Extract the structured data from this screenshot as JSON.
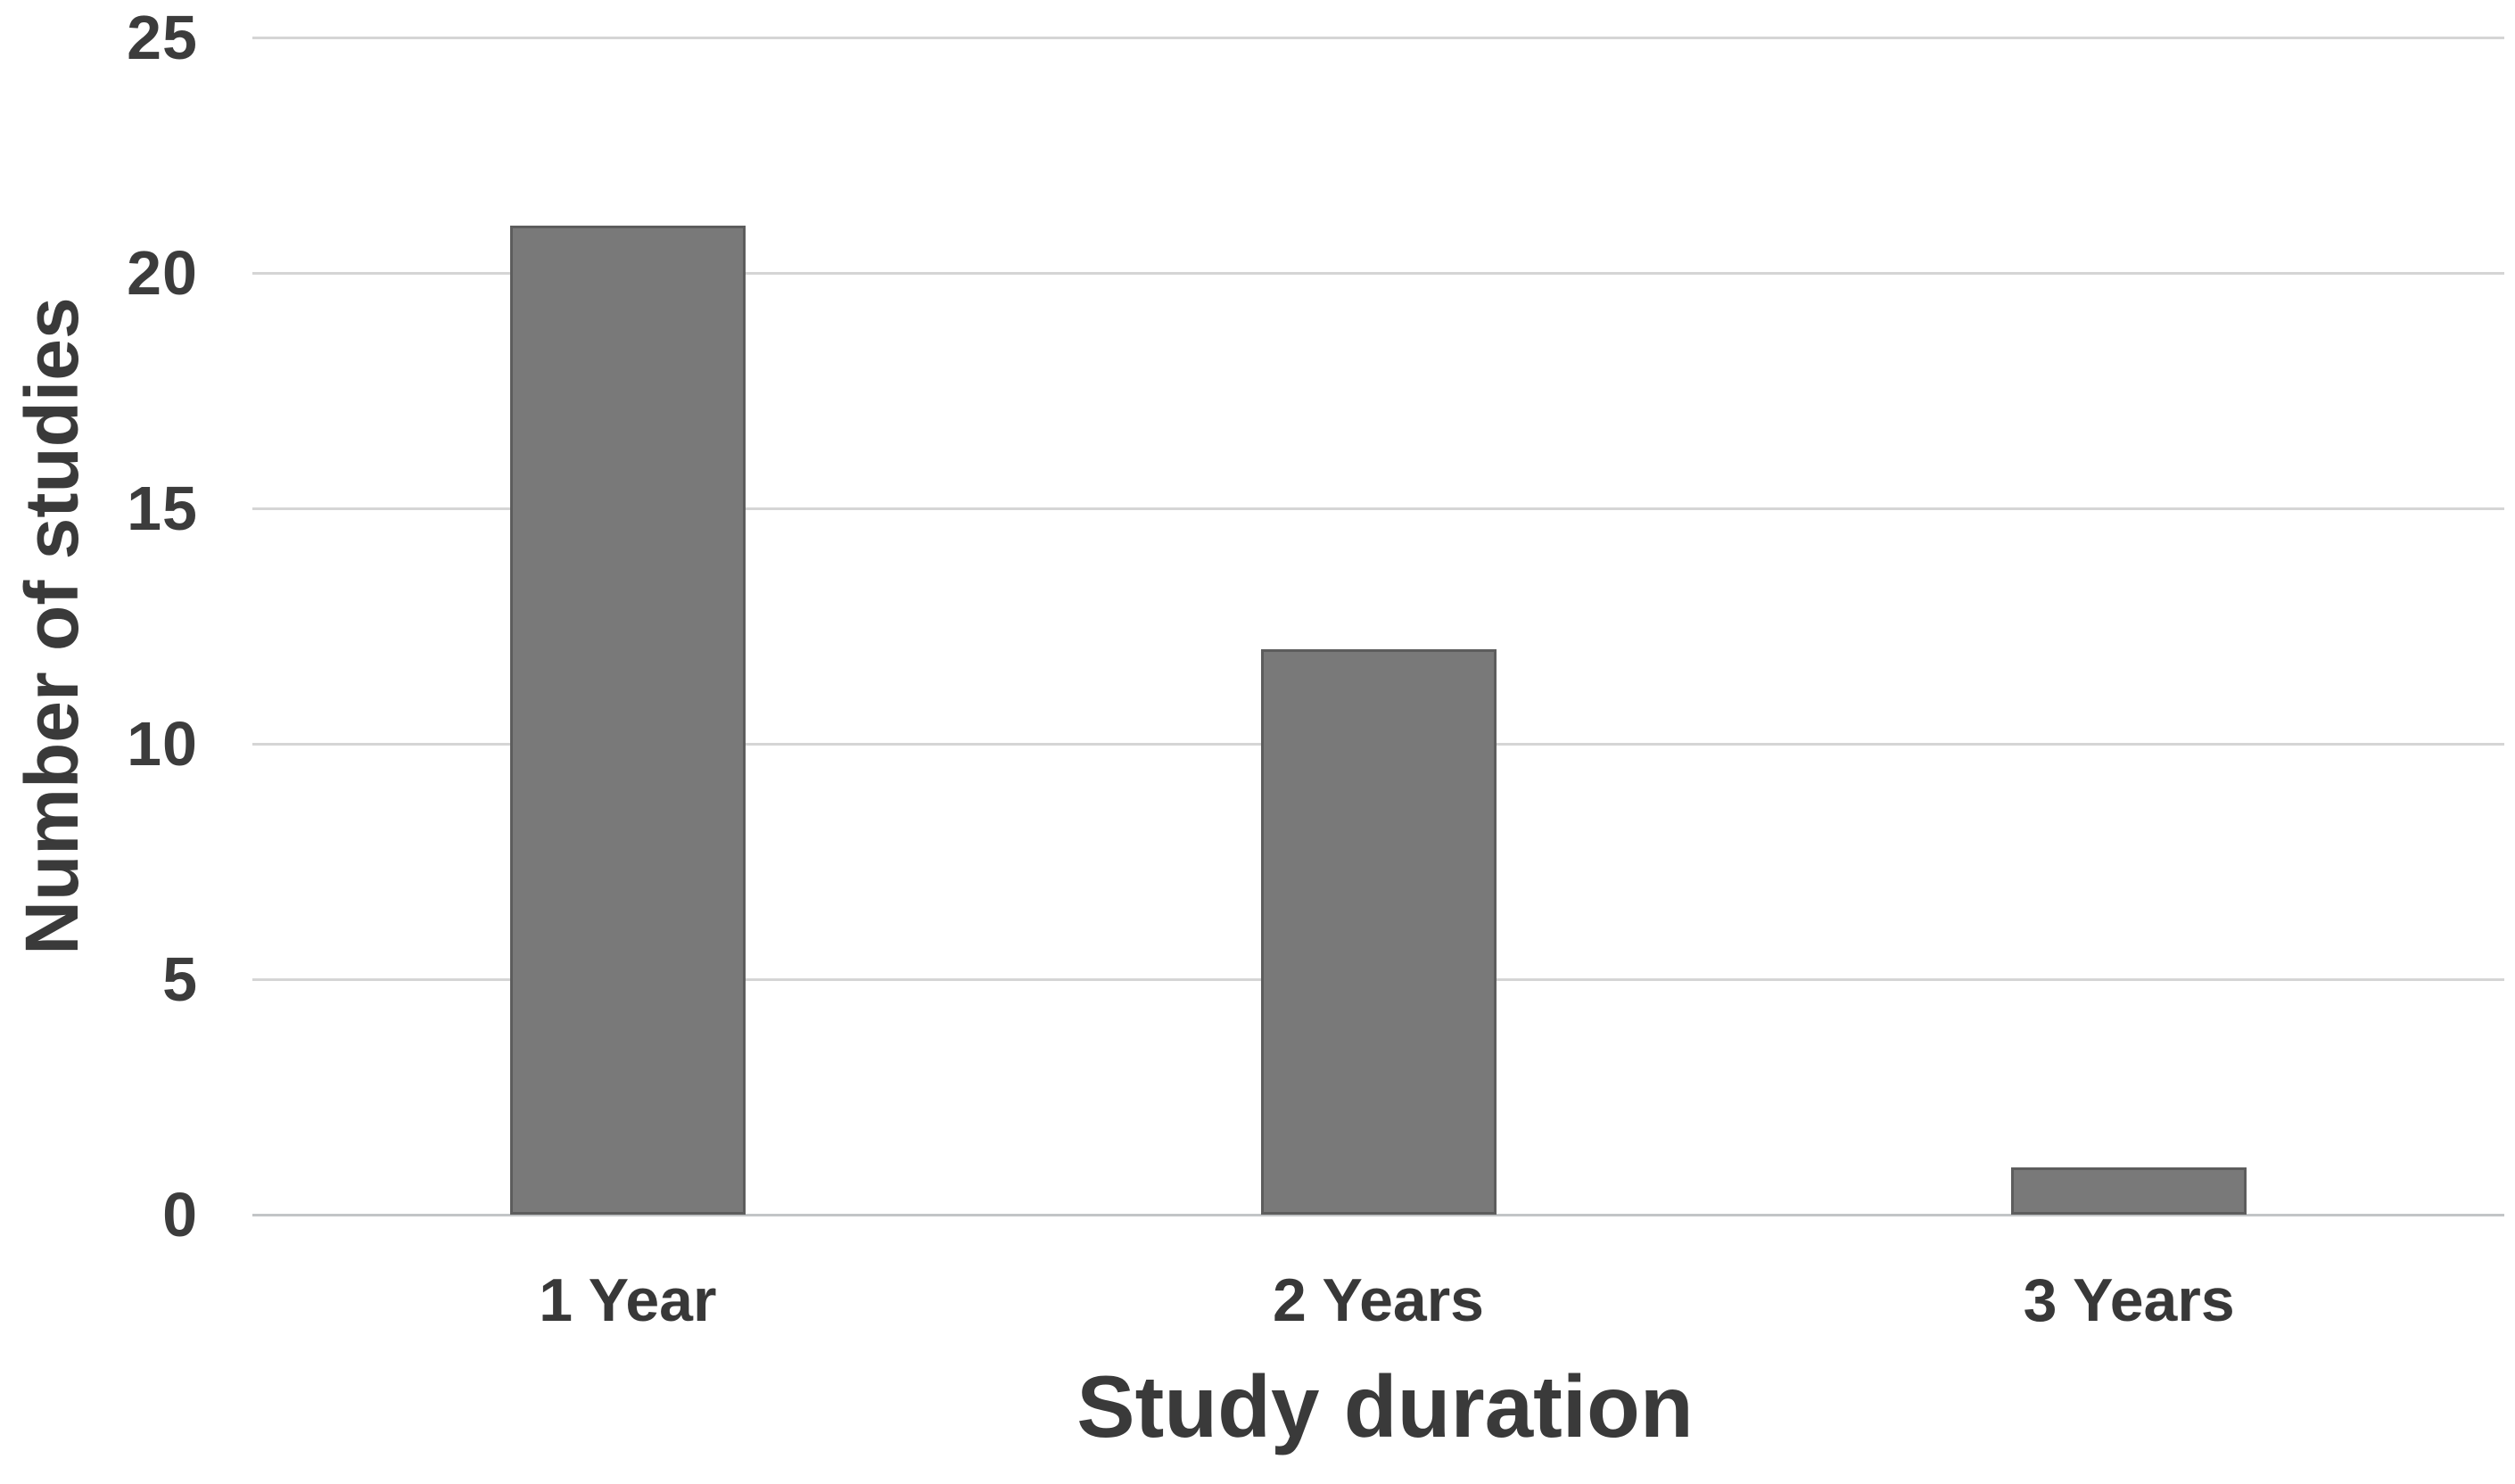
{
  "chart_data": {
    "type": "bar",
    "title": "",
    "xlabel": "Study duration",
    "ylabel": "Number of studies",
    "categories": [
      "1 Year",
      "2 Years",
      "3 Years"
    ],
    "values": [
      21,
      12,
      1
    ],
    "yticks": [
      0,
      5,
      10,
      15,
      20,
      25
    ],
    "ylim": [
      0,
      25
    ],
    "grid": "horizontal gridlines at every ytick, legend none",
    "bar_fill_color": "#797979",
    "bar_border_color": "#5d5d5d",
    "gridline_color": "#d5d5d5",
    "text_color": "#3c3c3c",
    "background_color": "#ffffff"
  }
}
